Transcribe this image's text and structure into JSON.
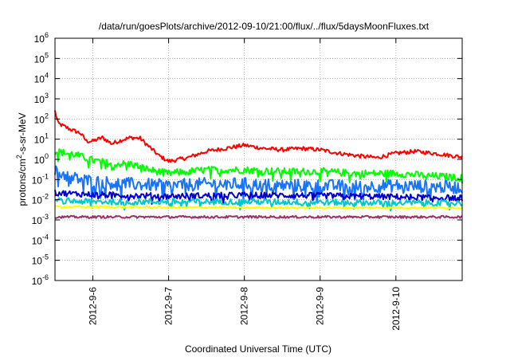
{
  "chart_data": {
    "type": "line",
    "title": "/data/run/goesPlots/archive/2012-09-10/21:00/flux/../flux/5daysMoonFluxes.txt",
    "xlabel": "Coordinated Universal Time (UTC)",
    "ylabel": {
      "prefix": "protons/cm",
      "sup": "2",
      "suffix": "-s-sr-MeV"
    },
    "yscale": "log",
    "ylim": [
      1e-06,
      1000000.0
    ],
    "xlim": [
      "2012-09-05T12:00",
      "2012-09-10T21:00"
    ],
    "grid": true,
    "legend": "none",
    "x_ticks": [
      {
        "label": "2012-9-6",
        "date": "2012-09-06T00:00"
      },
      {
        "label": "2012-9-7",
        "date": "2012-09-07T00:00"
      },
      {
        "label": "2012-9-8",
        "date": "2012-09-08T00:00"
      },
      {
        "label": "2012-9-9",
        "date": "2012-09-09T00:00"
      },
      {
        "label": "2012-9-10",
        "date": "2012-09-10T00:00"
      }
    ],
    "y_ticks": [
      {
        "base": "10",
        "exp": "-6",
        "value": 1e-06
      },
      {
        "base": "10",
        "exp": "-5",
        "value": 1e-05
      },
      {
        "base": "10",
        "exp": "-4",
        "value": 0.0001
      },
      {
        "base": "10",
        "exp": "-3",
        "value": 0.001
      },
      {
        "base": "10",
        "exp": "-2",
        "value": 0.01
      },
      {
        "base": "10",
        "exp": "-1",
        "value": 0.1
      },
      {
        "base": "10",
        "exp": "0",
        "value": 1
      },
      {
        "base": "10",
        "exp": "1",
        "value": 10
      },
      {
        "base": "10",
        "exp": "2",
        "value": 100
      },
      {
        "base": "10",
        "exp": "3",
        "value": 1000
      },
      {
        "base": "10",
        "exp": "4",
        "value": 10000
      },
      {
        "base": "10",
        "exp": "5",
        "value": 100000
      },
      {
        "base": "10",
        "exp": "6",
        "value": 1000000
      }
    ],
    "series": [
      {
        "color": "#ff0000",
        "noise": 0.1,
        "points": [
          [
            "2012-09-05T12:00",
            250
          ],
          [
            "2012-09-05T13:00",
            60
          ],
          [
            "2012-09-05T17:00",
            30
          ],
          [
            "2012-09-05T20:00",
            20
          ],
          [
            "2012-09-05T22:00",
            8
          ],
          [
            "2012-09-06T00:00",
            8
          ],
          [
            "2012-09-06T03:00",
            12
          ],
          [
            "2012-09-06T06:00",
            6
          ],
          [
            "2012-09-06T09:00",
            9
          ],
          [
            "2012-09-06T12:00",
            12
          ],
          [
            "2012-09-06T15:00",
            11
          ],
          [
            "2012-09-06T18:00",
            4
          ],
          [
            "2012-09-06T21:00",
            1.5
          ],
          [
            "2012-09-07T00:00",
            0.8
          ],
          [
            "2012-09-07T06:00",
            1.2
          ],
          [
            "2012-09-07T12:00",
            2.5
          ],
          [
            "2012-09-07T18:00",
            3.5
          ],
          [
            "2012-09-08T00:00",
            5
          ],
          [
            "2012-09-08T06:00",
            3.5
          ],
          [
            "2012-09-08T12:00",
            3
          ],
          [
            "2012-09-08T18:00",
            3.5
          ],
          [
            "2012-09-09T00:00",
            3
          ],
          [
            "2012-09-09T06:00",
            2
          ],
          [
            "2012-09-09T12:00",
            1.5
          ],
          [
            "2012-09-09T18:00",
            1.2
          ],
          [
            "2012-09-10T00:00",
            2
          ],
          [
            "2012-09-10T06:00",
            2.5
          ],
          [
            "2012-09-10T12:00",
            2
          ],
          [
            "2012-09-10T18:00",
            1.5
          ],
          [
            "2012-09-10T21:00",
            1.3
          ]
        ]
      },
      {
        "color": "#00ff00",
        "noise": 0.18,
        "points": [
          [
            "2012-09-05T12:00",
            2.5
          ],
          [
            "2012-09-05T18:00",
            1.8
          ],
          [
            "2012-09-06T00:00",
            0.9
          ],
          [
            "2012-09-06T06:00",
            0.6
          ],
          [
            "2012-09-06T12:00",
            0.6
          ],
          [
            "2012-09-06T18:00",
            0.3
          ],
          [
            "2012-09-07T00:00",
            0.2
          ],
          [
            "2012-09-07T06:00",
            0.25
          ],
          [
            "2012-09-07T12:00",
            0.3
          ],
          [
            "2012-09-08T00:00",
            0.3
          ],
          [
            "2012-09-08T12:00",
            0.25
          ],
          [
            "2012-09-09T00:00",
            0.25
          ],
          [
            "2012-09-09T12:00",
            0.2
          ],
          [
            "2012-09-10T00:00",
            0.2
          ],
          [
            "2012-09-10T12:00",
            0.15
          ],
          [
            "2012-09-10T21:00",
            0.12
          ]
        ]
      },
      {
        "color": "#1874ff",
        "noise": 0.32,
        "points": [
          [
            "2012-09-05T12:00",
            0.25
          ],
          [
            "2012-09-05T18:00",
            0.12
          ],
          [
            "2012-09-06T00:00",
            0.08
          ],
          [
            "2012-09-06T12:00",
            0.06
          ],
          [
            "2012-09-07T00:00",
            0.05
          ],
          [
            "2012-09-07T12:00",
            0.06
          ],
          [
            "2012-09-08T00:00",
            0.06
          ],
          [
            "2012-09-08T12:00",
            0.05
          ],
          [
            "2012-09-09T00:00",
            0.05
          ],
          [
            "2012-09-09T12:00",
            0.045
          ],
          [
            "2012-09-10T00:00",
            0.05
          ],
          [
            "2012-09-10T12:00",
            0.045
          ],
          [
            "2012-09-10T21:00",
            0.04
          ]
        ]
      },
      {
        "color": "#0000cd",
        "noise": 0.15,
        "points": [
          [
            "2012-09-05T12:00",
            0.022
          ],
          [
            "2012-09-06T00:00",
            0.018
          ],
          [
            "2012-09-07T00:00",
            0.015
          ],
          [
            "2012-09-08T00:00",
            0.017
          ],
          [
            "2012-09-09T00:00",
            0.016
          ],
          [
            "2012-09-10T00:00",
            0.014
          ],
          [
            "2012-09-10T21:00",
            0.012
          ]
        ]
      },
      {
        "color": "#00c8c8",
        "noise": 0.15,
        "points": [
          [
            "2012-09-05T12:00",
            0.009
          ],
          [
            "2012-09-06T00:00",
            0.008
          ],
          [
            "2012-09-07T00:00",
            0.008
          ],
          [
            "2012-09-08T00:00",
            0.008
          ],
          [
            "2012-09-09T00:00",
            0.0075
          ],
          [
            "2012-09-10T00:00",
            0.007
          ],
          [
            "2012-09-10T21:00",
            0.007
          ]
        ]
      },
      {
        "color": "#ffff00",
        "noise": 0.05,
        "points": [
          [
            "2012-09-05T12:00",
            0.0045
          ],
          [
            "2012-09-07T00:00",
            0.0042
          ],
          [
            "2012-09-09T00:00",
            0.004
          ],
          [
            "2012-09-10T21:00",
            0.004
          ]
        ]
      },
      {
        "color": "#993366",
        "noise": 0.06,
        "points": [
          [
            "2012-09-05T12:00",
            0.0014
          ],
          [
            "2012-09-07T00:00",
            0.0014
          ],
          [
            "2012-09-09T00:00",
            0.0014
          ],
          [
            "2012-09-10T21:00",
            0.0014
          ]
        ]
      }
    ]
  }
}
